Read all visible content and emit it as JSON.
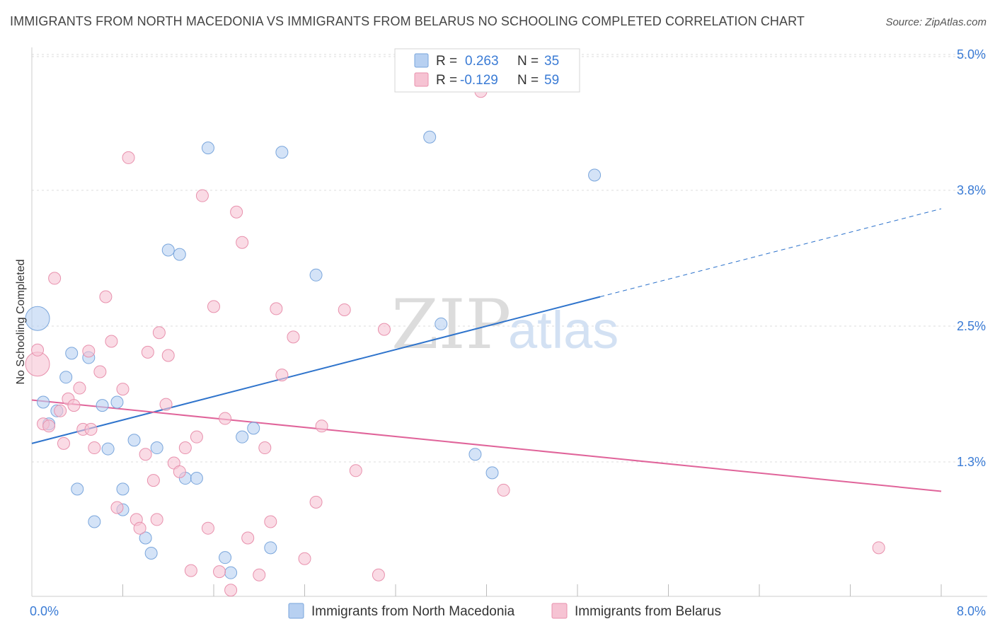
{
  "title": "IMMIGRANTS FROM NORTH MACEDONIA VS IMMIGRANTS FROM BELARUS NO SCHOOLING COMPLETED CORRELATION CHART",
  "source": "Source: ZipAtlas.com",
  "watermark": {
    "zip": "ZIP",
    "atlas": "atlas"
  },
  "colors": {
    "blue_fill": "#b7d0f1",
    "blue_stroke": "#7aa6dc",
    "blue_line": "#2f74cc",
    "pink_fill": "#f6c3d3",
    "pink_stroke": "#e891ad",
    "pink_line": "#e0649a",
    "value_text": "#3a7bd5",
    "grid": "#dddddd",
    "axis": "#cccccc"
  },
  "legend": {
    "r_label": "R =",
    "n_label": "N =",
    "blue": {
      "r": "0.263",
      "n": "35"
    },
    "pink": {
      "r": "-0.129",
      "n": "59"
    }
  },
  "chart_data": {
    "type": "scatter",
    "title": "IMMIGRANTS FROM NORTH MACEDONIA VS IMMIGRANTS FROM BELARUS NO SCHOOLING COMPLETED CORRELATION CHART",
    "xlabel": "",
    "ylabel": "No Schooling Completed",
    "xlim": [
      0,
      8
    ],
    "ylim": [
      0,
      5.25
    ],
    "x_tick_labels": [
      {
        "value": 0,
        "label": "0.0%"
      },
      {
        "value": 8,
        "label": "8.0%"
      }
    ],
    "y_tick_labels": [
      {
        "value": 1.25,
        "label": "1.3%"
      },
      {
        "value": 2.5,
        "label": "2.5%"
      },
      {
        "value": 3.75,
        "label": "3.8%"
      },
      {
        "value": 5.0,
        "label": "5.0%"
      }
    ],
    "x_minor_ticks": [
      0.8,
      1.6,
      2.4,
      3.2,
      4.0,
      4.8,
      5.6,
      6.4,
      7.2,
      8.0
    ],
    "series": [
      {
        "name": "Immigrants from North Macedonia",
        "color": "blue",
        "r": 0.263,
        "n": 35,
        "trend": {
          "x0": 0,
          "y0": 1.42,
          "x1": 5.0,
          "y1": 2.77,
          "x_dash_end": 8.0,
          "y_dash_end": 3.58
        },
        "points": [
          {
            "x": 0.05,
            "y": 2.57,
            "big": true
          },
          {
            "x": 0.1,
            "y": 1.8
          },
          {
            "x": 0.15,
            "y": 1.6
          },
          {
            "x": 0.22,
            "y": 1.72
          },
          {
            "x": 0.3,
            "y": 2.03
          },
          {
            "x": 0.35,
            "y": 2.25
          },
          {
            "x": 0.4,
            "y": 1.0
          },
          {
            "x": 0.5,
            "y": 2.21
          },
          {
            "x": 0.55,
            "y": 0.7
          },
          {
            "x": 0.62,
            "y": 1.77
          },
          {
            "x": 0.67,
            "y": 1.37
          },
          {
            "x": 0.75,
            "y": 1.8
          },
          {
            "x": 0.8,
            "y": 1.0
          },
          {
            "x": 0.8,
            "y": 0.81
          },
          {
            "x": 0.9,
            "y": 1.45
          },
          {
            "x": 1.0,
            "y": 0.55
          },
          {
            "x": 1.05,
            "y": 0.41
          },
          {
            "x": 1.1,
            "y": 1.38
          },
          {
            "x": 1.2,
            "y": 3.2
          },
          {
            "x": 1.3,
            "y": 3.16
          },
          {
            "x": 1.35,
            "y": 1.1
          },
          {
            "x": 1.45,
            "y": 1.1
          },
          {
            "x": 1.55,
            "y": 4.14
          },
          {
            "x": 1.7,
            "y": 0.37
          },
          {
            "x": 1.75,
            "y": 0.23
          },
          {
            "x": 1.85,
            "y": 1.48
          },
          {
            "x": 1.95,
            "y": 1.56
          },
          {
            "x": 2.1,
            "y": 0.46
          },
          {
            "x": 2.2,
            "y": 4.1
          },
          {
            "x": 2.5,
            "y": 2.97
          },
          {
            "x": 3.5,
            "y": 4.24
          },
          {
            "x": 3.6,
            "y": 2.52
          },
          {
            "x": 3.9,
            "y": 1.32
          },
          {
            "x": 4.05,
            "y": 1.15
          },
          {
            "x": 4.95,
            "y": 3.89
          }
        ]
      },
      {
        "name": "Immigrants from Belarus",
        "color": "pink",
        "r": -0.129,
        "n": 59,
        "trend": {
          "x0": 0,
          "y0": 1.82,
          "x1": 8.0,
          "y1": 0.98
        },
        "points": [
          {
            "x": 0.05,
            "y": 2.15,
            "big": true
          },
          {
            "x": 0.05,
            "y": 2.28
          },
          {
            "x": 0.1,
            "y": 1.6
          },
          {
            "x": 0.15,
            "y": 1.58
          },
          {
            "x": 0.2,
            "y": 2.94
          },
          {
            "x": 0.25,
            "y": 1.72
          },
          {
            "x": 0.28,
            "y": 1.42
          },
          {
            "x": 0.32,
            "y": 1.83
          },
          {
            "x": 0.37,
            "y": 1.77
          },
          {
            "x": 0.42,
            "y": 1.93
          },
          {
            "x": 0.45,
            "y": 1.55
          },
          {
            "x": 0.5,
            "y": 2.27
          },
          {
            "x": 0.52,
            "y": 1.55
          },
          {
            "x": 0.55,
            "y": 1.38
          },
          {
            "x": 0.6,
            "y": 2.08
          },
          {
            "x": 0.65,
            "y": 2.77
          },
          {
            "x": 0.7,
            "y": 2.36
          },
          {
            "x": 0.75,
            "y": 0.83
          },
          {
            "x": 0.8,
            "y": 1.92
          },
          {
            "x": 0.85,
            "y": 4.05
          },
          {
            "x": 0.92,
            "y": 0.72
          },
          {
            "x": 0.95,
            "y": 0.64
          },
          {
            "x": 1.0,
            "y": 1.32
          },
          {
            "x": 1.02,
            "y": 2.26
          },
          {
            "x": 1.07,
            "y": 1.08
          },
          {
            "x": 1.1,
            "y": 0.72
          },
          {
            "x": 1.12,
            "y": 2.44
          },
          {
            "x": 1.18,
            "y": 1.78
          },
          {
            "x": 1.2,
            "y": 2.23
          },
          {
            "x": 1.25,
            "y": 1.24
          },
          {
            "x": 1.3,
            "y": 1.16
          },
          {
            "x": 1.35,
            "y": 1.38
          },
          {
            "x": 1.4,
            "y": 0.25
          },
          {
            "x": 1.45,
            "y": 1.48
          },
          {
            "x": 1.5,
            "y": 3.7
          },
          {
            "x": 1.55,
            "y": 0.64
          },
          {
            "x": 1.6,
            "y": 2.68
          },
          {
            "x": 1.65,
            "y": 0.24
          },
          {
            "x": 1.7,
            "y": 1.65
          },
          {
            "x": 1.75,
            "y": 0.07
          },
          {
            "x": 1.8,
            "y": 3.55
          },
          {
            "x": 1.85,
            "y": 3.27
          },
          {
            "x": 1.9,
            "y": 0.55
          },
          {
            "x": 2.0,
            "y": 0.21
          },
          {
            "x": 2.05,
            "y": 1.38
          },
          {
            "x": 2.1,
            "y": 0.7
          },
          {
            "x": 2.15,
            "y": 2.66
          },
          {
            "x": 2.2,
            "y": 2.05
          },
          {
            "x": 2.3,
            "y": 2.4
          },
          {
            "x": 2.4,
            "y": 0.36
          },
          {
            "x": 2.5,
            "y": 0.88
          },
          {
            "x": 2.55,
            "y": 1.58
          },
          {
            "x": 2.75,
            "y": 2.65
          },
          {
            "x": 2.85,
            "y": 1.17
          },
          {
            "x": 3.05,
            "y": 0.21
          },
          {
            "x": 3.1,
            "y": 2.47
          },
          {
            "x": 3.95,
            "y": 4.66
          },
          {
            "x": 4.15,
            "y": 0.99
          },
          {
            "x": 7.45,
            "y": 0.46
          }
        ]
      }
    ]
  }
}
